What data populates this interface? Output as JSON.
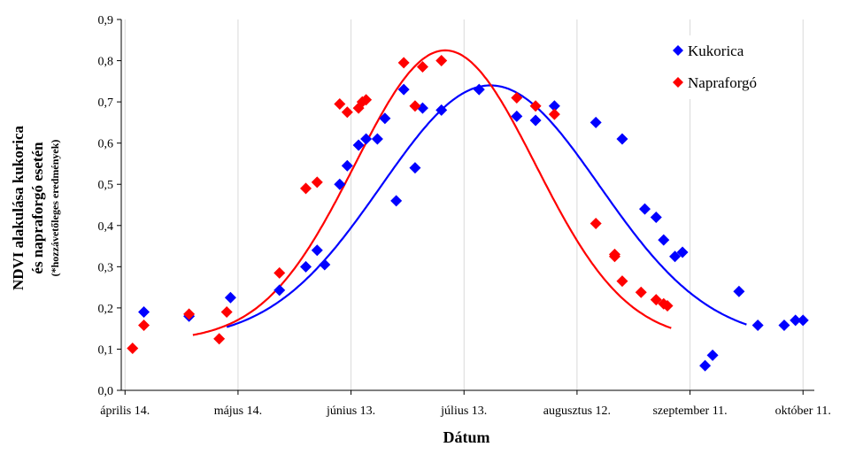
{
  "chart_data": {
    "type": "scatter",
    "ylabel_line1": "NDVI alakulása kukorica",
    "ylabel_line2": "és napraforgó esetén",
    "ylabel_note": "(*hozzávetőleges eredmények)",
    "xlabel": "Dátum",
    "ylim": [
      0,
      0.9
    ],
    "yticks": [
      "0,0",
      "0,1",
      "0,2",
      "0,3",
      "0,4",
      "0,5",
      "0,6",
      "0,7",
      "0,8",
      "0,9"
    ],
    "xlim_days": [
      -1,
      183
    ],
    "xticks": [
      {
        "day": 0,
        "label": "április 14."
      },
      {
        "day": 30,
        "label": "május 14."
      },
      {
        "day": 60,
        "label": "június 13."
      },
      {
        "day": 90,
        "label": "július 13."
      },
      {
        "day": 120,
        "label": "augusztus 12."
      },
      {
        "day": 150,
        "label": "szeptember 11."
      },
      {
        "day": 180,
        "label": "október 11."
      }
    ],
    "grid": "vertical",
    "legend_position": "top-right",
    "series": [
      {
        "name": "Kukorica",
        "color": "#0000ff",
        "marker": "diamond",
        "points": [
          [
            5,
            0.19
          ],
          [
            17,
            0.18
          ],
          [
            28,
            0.225
          ],
          [
            41,
            0.243
          ],
          [
            48,
            0.3
          ],
          [
            51,
            0.34
          ],
          [
            53,
            0.305
          ],
          [
            57,
            0.5
          ],
          [
            59,
            0.545
          ],
          [
            62,
            0.595
          ],
          [
            64,
            0.61
          ],
          [
            67,
            0.61
          ],
          [
            69,
            0.66
          ],
          [
            72,
            0.46
          ],
          [
            74,
            0.73
          ],
          [
            77,
            0.54
          ],
          [
            79,
            0.685
          ],
          [
            84,
            0.68
          ],
          [
            94,
            0.73
          ],
          [
            104,
            0.665
          ],
          [
            109,
            0.655
          ],
          [
            114,
            0.69
          ],
          [
            125,
            0.65
          ],
          [
            132,
            0.61
          ],
          [
            138,
            0.44
          ],
          [
            141,
            0.42
          ],
          [
            143,
            0.365
          ],
          [
            146,
            0.325
          ],
          [
            148,
            0.335
          ],
          [
            154,
            0.06
          ],
          [
            156,
            0.085
          ],
          [
            163,
            0.24
          ],
          [
            168,
            0.158
          ],
          [
            175,
            0.158
          ],
          [
            178,
            0.17
          ],
          [
            180,
            0.17
          ]
        ]
      },
      {
        "name": "Napraforgó",
        "color": "#ff0000",
        "marker": "diamond",
        "points": [
          [
            2,
            0.102
          ],
          [
            5,
            0.158
          ],
          [
            17,
            0.185
          ],
          [
            25,
            0.125
          ],
          [
            27,
            0.19
          ],
          [
            41,
            0.285
          ],
          [
            48,
            0.49
          ],
          [
            51,
            0.505
          ],
          [
            57,
            0.695
          ],
          [
            59,
            0.675
          ],
          [
            62,
            0.685
          ],
          [
            63,
            0.7
          ],
          [
            64,
            0.705
          ],
          [
            74,
            0.795
          ],
          [
            77,
            0.69
          ],
          [
            79,
            0.785
          ],
          [
            84,
            0.8
          ],
          [
            104,
            0.71
          ],
          [
            109,
            0.69
          ],
          [
            114,
            0.67
          ],
          [
            125,
            0.405
          ],
          [
            130,
            0.33
          ],
          [
            130,
            0.325
          ],
          [
            132,
            0.265
          ],
          [
            137,
            0.238
          ],
          [
            141,
            0.22
          ],
          [
            143,
            0.21
          ],
          [
            144,
            0.205
          ]
        ]
      }
    ],
    "trend_curves": [
      {
        "series": "Kukorica",
        "color": "#0000ff",
        "peak_day": 97,
        "peak_value": 0.74,
        "sigma": 29,
        "base": 0.12,
        "from_day": 27,
        "to_day": 165
      },
      {
        "series": "Napraforgó",
        "color": "#ff0000",
        "peak_day": 85,
        "peak_value": 0.825,
        "sigma": 24,
        "base": 0.12,
        "from_day": 18,
        "to_day": 145
      }
    ]
  }
}
